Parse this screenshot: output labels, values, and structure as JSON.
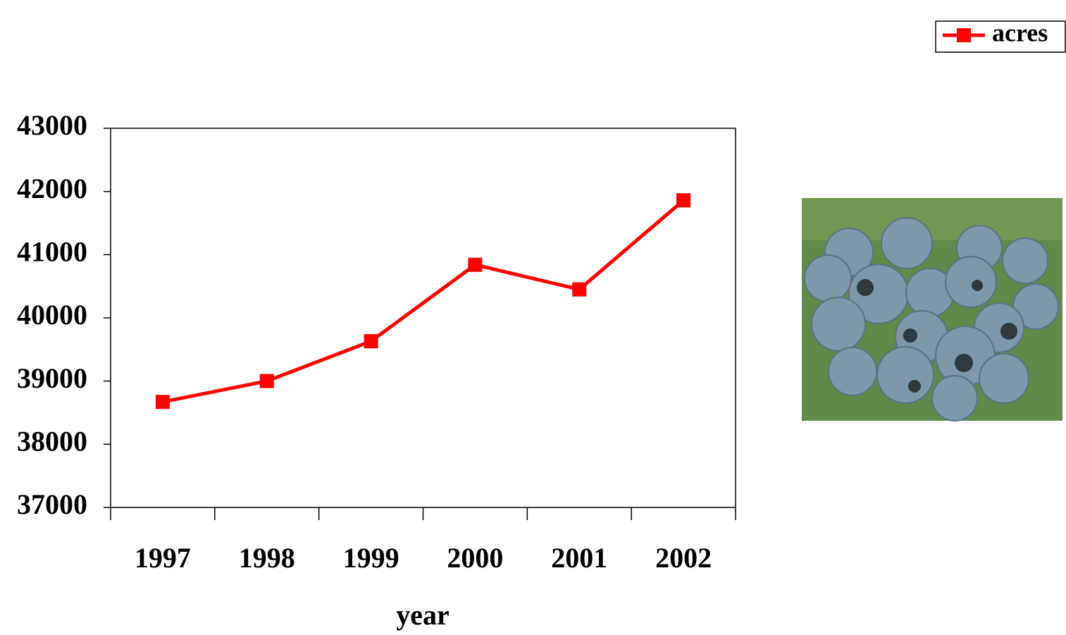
{
  "chart_data": {
    "type": "line",
    "categories": [
      "1997",
      "1998",
      "1999",
      "2000",
      "2001",
      "2002"
    ],
    "series": [
      {
        "name": "acres",
        "color": "#ff0000",
        "values": [
          38670,
          39000,
          39630,
          40840,
          40450,
          41860
        ]
      }
    ],
    "x_label": "year",
    "ylim": [
      37000,
      43000
    ],
    "yticks": [
      37000,
      38000,
      39000,
      40000,
      41000,
      42000,
      43000
    ],
    "grid": false,
    "legend": "top-right"
  }
}
